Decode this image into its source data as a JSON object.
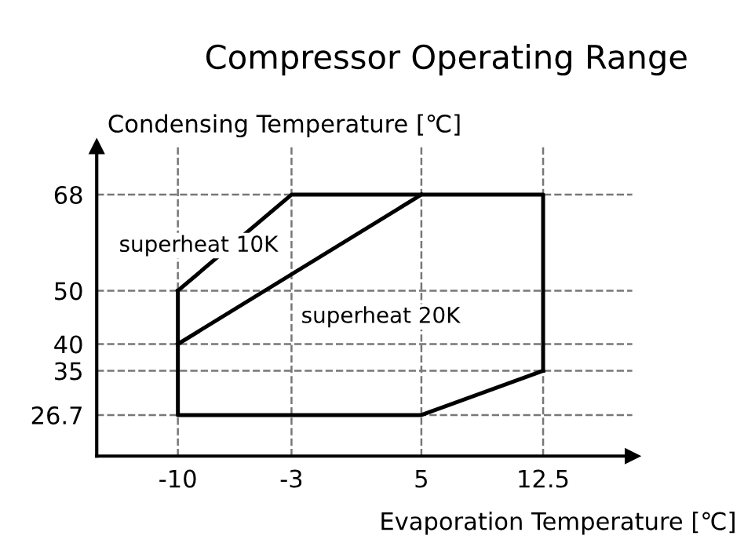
{
  "chart_data": {
    "type": "line",
    "title": "Compressor Operating Range",
    "xlabel": "Evaporation Temperature [℃]",
    "ylabel": "Condensing Temperature [℃]",
    "series": [
      {
        "color": "#000000",
        "x": [
          -10,
          -3,
          12.5,
          12.5
        ],
        "values": [
          50,
          68,
          68,
          35
        ]
      },
      {
        "color": "#000000",
        "x": [
          -10,
          -10,
          5,
          12.5
        ],
        "values": [
          50,
          26.7,
          26.7,
          35
        ]
      },
      {
        "color": "#000000",
        "x": [
          -10,
          5
        ],
        "values": [
          40,
          68
        ]
      }
    ],
    "xlim": [
      -15,
      18
    ],
    "ylim": [
      19,
      77
    ],
    "xticks": [
      -10,
      -3,
      5,
      12.5
    ],
    "yticks": [
      26.7,
      35,
      40,
      50,
      68
    ],
    "grid": true,
    "line_style": "solid",
    "marker": "none",
    "annotations": [
      "superheat 10K",
      "superheat 20K"
    ]
  }
}
